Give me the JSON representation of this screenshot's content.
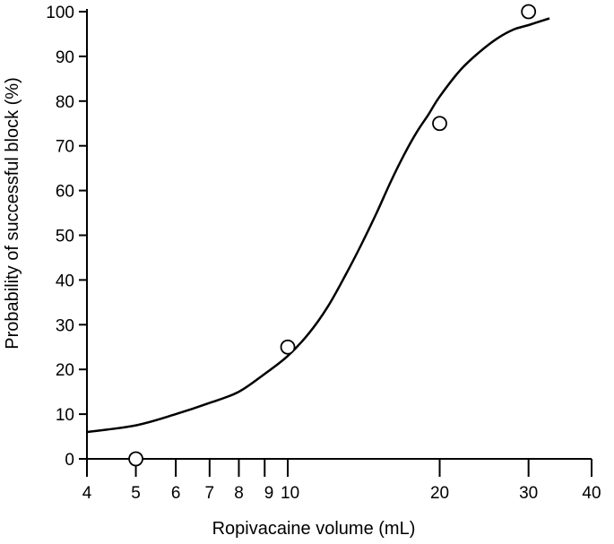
{
  "chart_data": {
    "type": "scatter",
    "title": "",
    "xlabel": "Ropivacaine volume (mL)",
    "ylabel": "Probability of successful block (%)",
    "x_scale": "log",
    "xlim": [
      4,
      40
    ],
    "ylim": [
      0,
      100
    ],
    "x_ticks": [
      4,
      5,
      6,
      7,
      8,
      9,
      10,
      20,
      30,
      40
    ],
    "x_tick_labels": [
      "4",
      "5",
      "6",
      "7",
      "8",
      "9",
      "10",
      "20",
      "30",
      "40"
    ],
    "y_ticks": [
      0,
      10,
      20,
      30,
      40,
      50,
      60,
      70,
      80,
      90,
      100
    ],
    "y_tick_labels": [
      "0",
      "10",
      "20",
      "30",
      "40",
      "50",
      "60",
      "70",
      "80",
      "90",
      "100"
    ],
    "grid": false,
    "legend": "none",
    "series": [
      {
        "kind": "points",
        "marker": "open-circle",
        "x": [
          5,
          10,
          20,
          30
        ],
        "y": [
          0,
          25,
          75,
          100
        ]
      },
      {
        "kind": "fitted-curve",
        "x": [
          4,
          5,
          6,
          7,
          8,
          9,
          10,
          11,
          12,
          13,
          14,
          15,
          16,
          17,
          18,
          19,
          20,
          22,
          24,
          26,
          28,
          30,
          33
        ],
        "y": [
          6,
          7.5,
          10,
          12.5,
          15,
          19,
          23,
          28,
          34,
          41,
          48,
          55,
          62,
          68,
          73,
          77,
          81,
          87,
          91,
          94,
          96,
          97,
          98.5
        ]
      }
    ],
    "colors": {
      "line": "#000000",
      "marker": "#000000"
    }
  }
}
